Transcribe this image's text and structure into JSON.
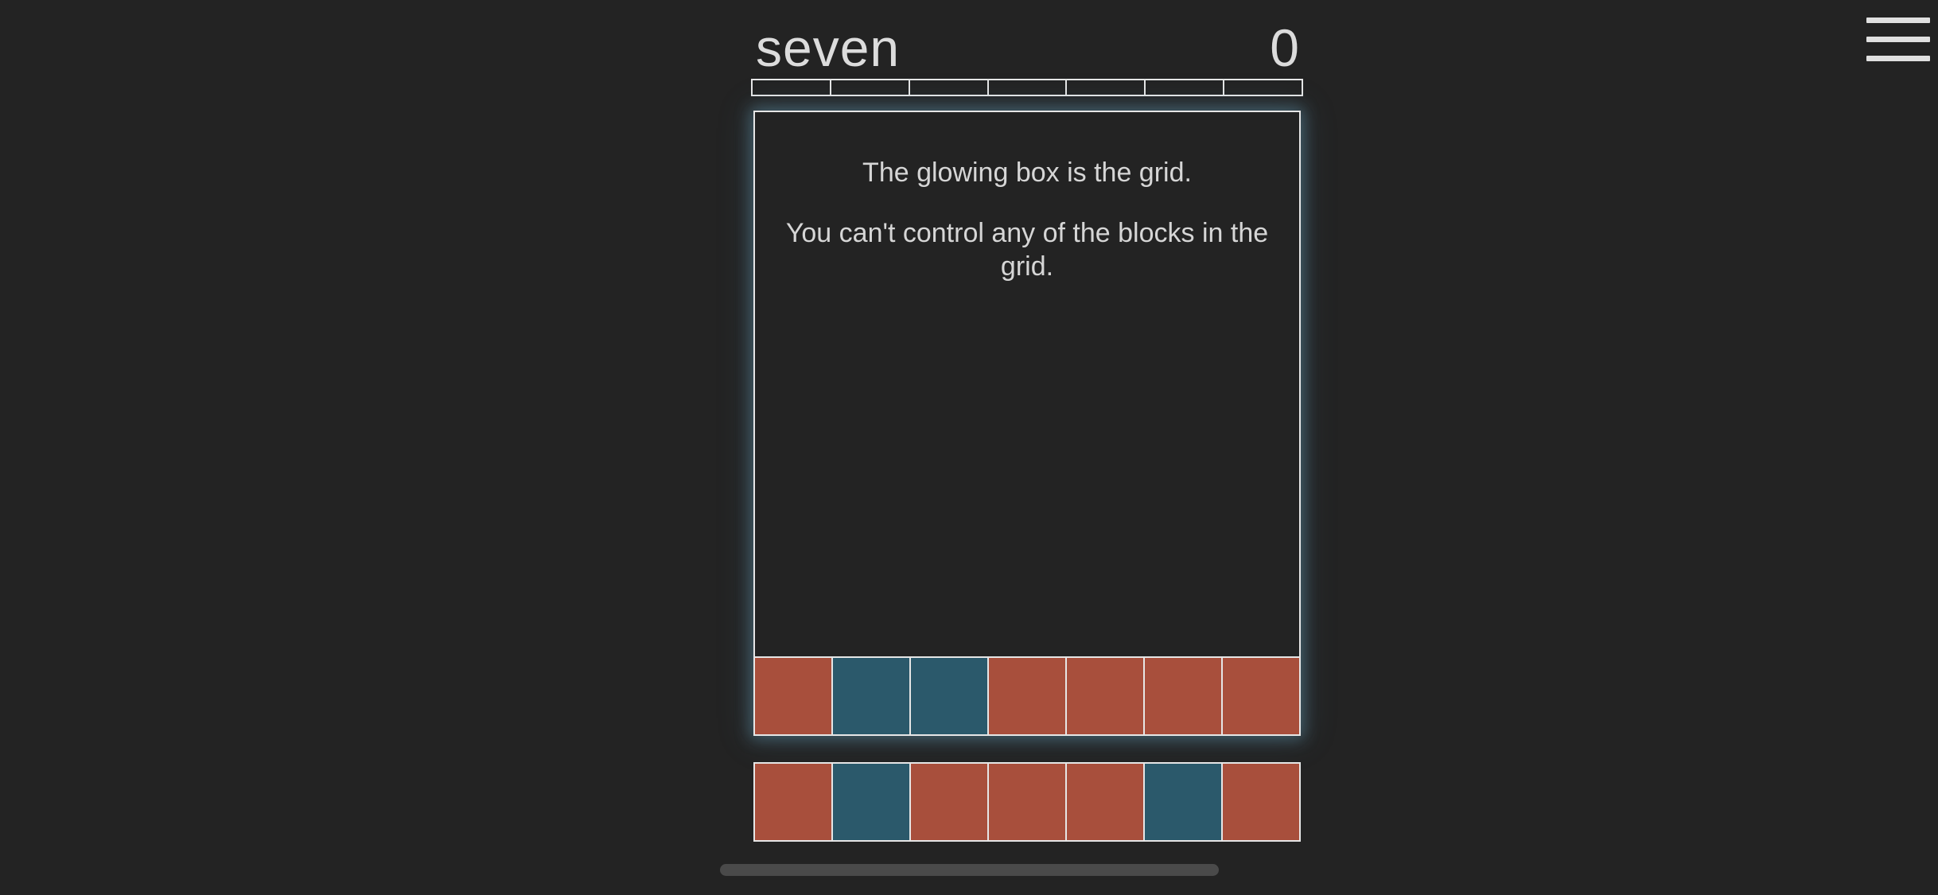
{
  "header": {
    "level_name": "seven",
    "score": "0"
  },
  "menu": {
    "icon": "hamburger-menu-icon"
  },
  "progress": {
    "segments": 7,
    "filled": 0
  },
  "tutorial": {
    "line1": "The glowing box is the grid.",
    "line2": "You can't control any of the blocks in the grid."
  },
  "colors": {
    "red": "#a84f3c",
    "teal": "#2b596b",
    "background": "#232323",
    "border": "#e6e6e6"
  },
  "grid_row": [
    "red",
    "teal",
    "teal",
    "red",
    "red",
    "red",
    "red"
  ],
  "next_row": [
    "red",
    "teal",
    "red",
    "red",
    "red",
    "teal",
    "red"
  ]
}
